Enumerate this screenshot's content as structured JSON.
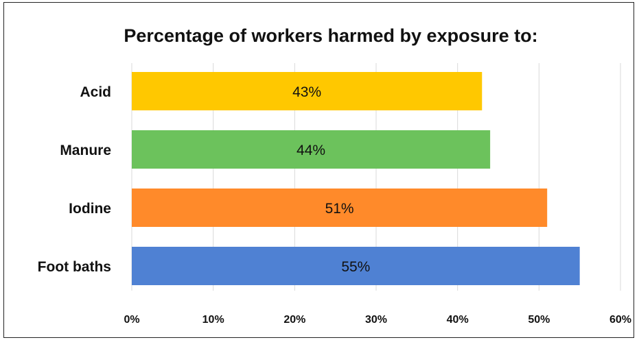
{
  "chart_data": {
    "type": "bar",
    "orientation": "horizontal",
    "title": "Percentage of workers harmed by exposure to:",
    "xlabel": "",
    "ylabel": "",
    "categories": [
      "Acid",
      "Manure",
      "Iodine",
      "Foot baths"
    ],
    "values": [
      43,
      44,
      51,
      55
    ],
    "data_labels": [
      "43%",
      "44%",
      "51%",
      "55%"
    ],
    "colors": [
      "#ffc800",
      "#6cc25c",
      "#ff8a2a",
      "#4f81d3"
    ],
    "xlim": [
      0,
      60
    ],
    "xticks": [
      0,
      10,
      20,
      30,
      40,
      50,
      60
    ],
    "xtick_labels": [
      "0%",
      "10%",
      "20%",
      "30%",
      "40%",
      "50%",
      "60%"
    ],
    "grid": true,
    "legend": "none"
  }
}
